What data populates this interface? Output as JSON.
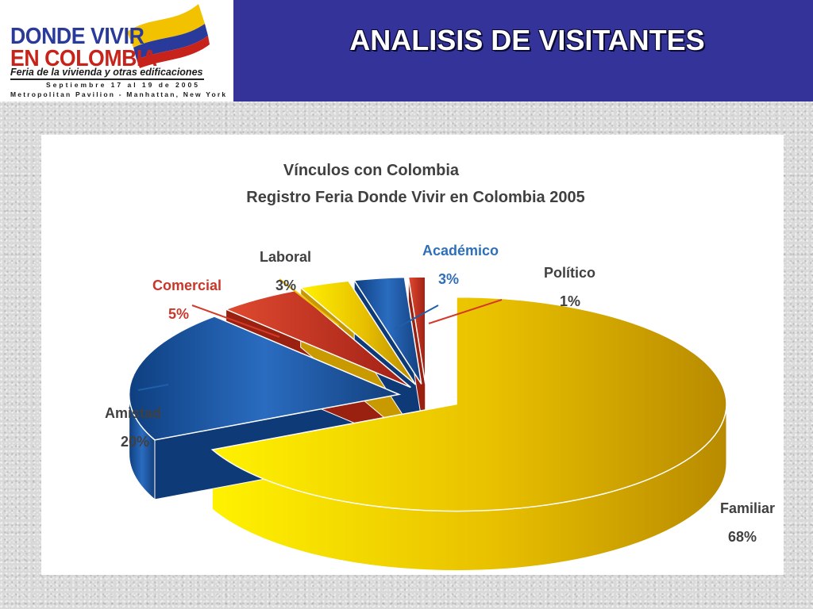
{
  "header": {
    "title": "ANALISIS DE VISITANTES"
  },
  "logo": {
    "line1": "DONDE VIVIR",
    "line2": "EN COLOMBIA",
    "line3": "Feria de la vivienda y otras edificaciones",
    "line4": "Septiembre 17 al 19 de 2005",
    "line5": "Metropolitan Pavilion - Manhattan, New York",
    "flag_colors": [
      "#f2c200",
      "#2a3a9a",
      "#c8231b"
    ]
  },
  "chart_data": {
    "type": "pie",
    "title": "Vínculos con Colombia",
    "subtitle": "Registro Feria Donde Vivir en Colombia 2005",
    "exploded": true,
    "three_d": true,
    "slices": [
      {
        "name": "Familiar",
        "value": 68,
        "label": "68%",
        "color": "#f0c000",
        "label_color": "#404040"
      },
      {
        "name": "Amistad",
        "value": 20,
        "label": "20%",
        "color": "#1f5fa8",
        "label_color": "#404040"
      },
      {
        "name": "Comercial",
        "value": 5,
        "label": "5%",
        "color": "#d23a2a",
        "label_color": "#c8372a"
      },
      {
        "name": "Laboral",
        "value": 3,
        "label": "3%",
        "color": "#f0c000",
        "label_color": "#404040"
      },
      {
        "name": "Académico",
        "value": 3,
        "label": "3%",
        "color": "#1f5fa8",
        "label_color": "#2f6fb8"
      },
      {
        "name": "Político",
        "value": 1,
        "label": "1%",
        "color": "#d23a2a",
        "label_color": "#404040"
      }
    ]
  }
}
